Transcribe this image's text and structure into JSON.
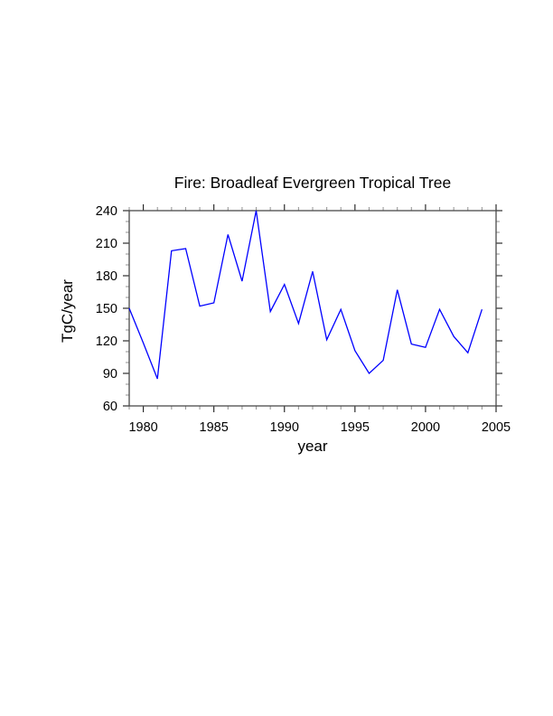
{
  "page": {
    "background_color": "#ffffff"
  },
  "chart_data": {
    "type": "line",
    "title": "Fire: Broadleaf Evergreen Tropical Tree",
    "xlabel": "year",
    "ylabel": "TgC/year",
    "x": [
      1979,
      1980,
      1981,
      1982,
      1983,
      1984,
      1985,
      1986,
      1987,
      1988,
      1989,
      1990,
      1991,
      1992,
      1993,
      1994,
      1995,
      1996,
      1997,
      1998,
      1999,
      2000,
      2001,
      2002,
      2003,
      2004
    ],
    "values": [
      150,
      118,
      85,
      203,
      205,
      152,
      155,
      218,
      175,
      240,
      147,
      172,
      136,
      184,
      121,
      149,
      111,
      90,
      102,
      167,
      117,
      114,
      149,
      124,
      109,
      149
    ],
    "xlim": [
      1979,
      2005
    ],
    "ylim": [
      60,
      240
    ],
    "x_major_ticks": [
      1980,
      1985,
      1990,
      1995,
      2000,
      2005
    ],
    "x_minor_step": 1,
    "y_major_ticks": [
      60,
      90,
      120,
      150,
      180,
      210,
      240
    ],
    "y_minor_step": 10,
    "grid": false,
    "legend": "none",
    "line_color": "#0000ff",
    "frame_color": "#4a4a4a",
    "major_tick_color": "#1a1a1a",
    "minor_tick_color": "#9a9a9a"
  }
}
